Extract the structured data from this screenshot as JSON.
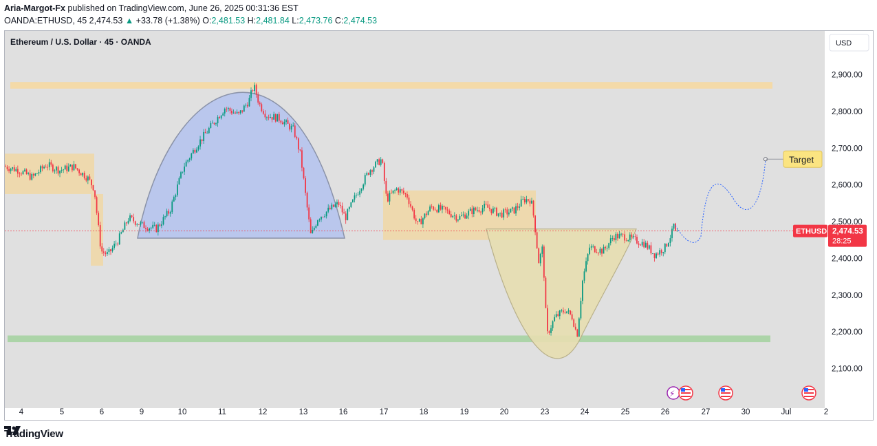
{
  "header": {
    "author": "Aria-Margot-Fx",
    "published_text": "published on TradingView.com, June 26, 2025 00:31:36 EST",
    "symbol": "OANDA:ETHUSD, 45",
    "last": "2,474.53",
    "change": "+33.78 (+1.38%)",
    "o_label": "O:",
    "o_val": "2,481.53",
    "h_label": "H:",
    "h_val": "2,481.84",
    "l_label": "L:",
    "l_val": "2,473.76",
    "c_label": "C:",
    "c_val": "2,474.53"
  },
  "footer": {
    "brand": "TradingView"
  },
  "colors": {
    "up": "#089981",
    "down": "#f23645",
    "chart_bg": "#e0e0e0",
    "resistance_zone": "#f6d9a2",
    "support_zone": "#a9d3a4",
    "range_zone": "#f0d8a8",
    "dome_fill": "#b3c2ee",
    "cup_fill": "#e7deb0",
    "price_tag": "#f23645",
    "target_label": "#fbe481"
  },
  "chart_data": {
    "type": "candlestick",
    "title": "Ethereum / U.S. Dollar · 45 · OANDA",
    "currency_button": "USD",
    "y_axis": {
      "ticks": [
        "2,100.00",
        "2,200.00",
        "2,300.00",
        "2,400.00",
        "2,500.00",
        "2,600.00",
        "2,700.00",
        "2,800.00",
        "2,900.00"
      ],
      "tick_values": [
        2100,
        2200,
        2300,
        2400,
        2500,
        2600,
        2700,
        2800,
        2900
      ],
      "ylim": [
        2000,
        2970
      ]
    },
    "x_axis": {
      "ticks": [
        "4",
        "5",
        "6",
        "9",
        "10",
        "11",
        "12",
        "13",
        "16",
        "17",
        "18",
        "19",
        "20",
        "23",
        "24",
        "25",
        "26",
        "27",
        "30",
        "Jul",
        "2"
      ]
    },
    "price_path": [
      [
        0,
        2650
      ],
      [
        20,
        2640
      ],
      [
        40,
        2620
      ],
      [
        60,
        2655
      ],
      [
        80,
        2640
      ],
      [
        100,
        2650
      ],
      [
        120,
        2620
      ],
      [
        130,
        2590
      ],
      [
        135,
        2500
      ],
      [
        140,
        2420
      ],
      [
        150,
        2410
      ],
      [
        165,
        2450
      ],
      [
        180,
        2510
      ],
      [
        200,
        2490
      ],
      [
        220,
        2480
      ],
      [
        240,
        2530
      ],
      [
        260,
        2650
      ],
      [
        280,
        2710
      ],
      [
        300,
        2760
      ],
      [
        320,
        2810
      ],
      [
        340,
        2790
      ],
      [
        355,
        2830
      ],
      [
        362,
        2870
      ],
      [
        370,
        2820
      ],
      [
        380,
        2790
      ],
      [
        400,
        2780
      ],
      [
        420,
        2750
      ],
      [
        430,
        2680
      ],
      [
        438,
        2560
      ],
      [
        445,
        2460
      ],
      [
        455,
        2510
      ],
      [
        470,
        2530
      ],
      [
        485,
        2550
      ],
      [
        495,
        2510
      ],
      [
        510,
        2570
      ],
      [
        530,
        2640
      ],
      [
        548,
        2670
      ],
      [
        555,
        2560
      ],
      [
        570,
        2590
      ],
      [
        585,
        2570
      ],
      [
        600,
        2490
      ],
      [
        620,
        2540
      ],
      [
        640,
        2530
      ],
      [
        660,
        2510
      ],
      [
        680,
        2530
      ],
      [
        700,
        2540
      ],
      [
        720,
        2520
      ],
      [
        740,
        2530
      ],
      [
        755,
        2560
      ],
      [
        765,
        2560
      ],
      [
        770,
        2500
      ],
      [
        776,
        2390
      ],
      [
        782,
        2430
      ],
      [
        788,
        2190
      ],
      [
        800,
        2240
      ],
      [
        815,
        2260
      ],
      [
        825,
        2240
      ],
      [
        832,
        2190
      ],
      [
        840,
        2340
      ],
      [
        850,
        2430
      ],
      [
        870,
        2420
      ],
      [
        885,
        2460
      ],
      [
        900,
        2460
      ],
      [
        915,
        2450
      ],
      [
        930,
        2440
      ],
      [
        945,
        2410
      ],
      [
        960,
        2430
      ],
      [
        970,
        2470
      ],
      [
        975,
        2510
      ],
      [
        980,
        2474.53
      ]
    ],
    "annotations": {
      "resistance_zone": {
        "from": 2862,
        "to": 2880
      },
      "support_zone": {
        "from": 2172,
        "to": 2190
      },
      "left_range": {
        "from": 2575,
        "to": 2685
      },
      "mid_range": {
        "from": 2450,
        "to": 2585
      },
      "target_label": "Target",
      "target_price": 2670
    },
    "last_price": {
      "symbol": "ETHUSD",
      "price": "2,474.53",
      "countdown": "28:25",
      "value": 2474.53
    }
  }
}
